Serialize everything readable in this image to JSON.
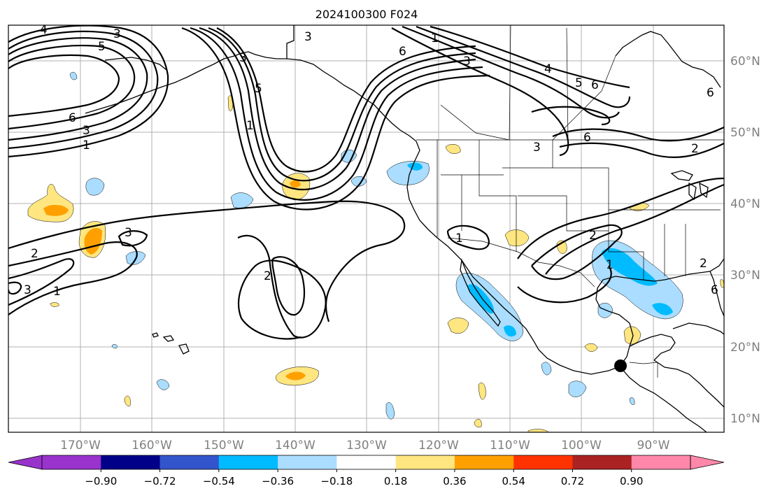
{
  "title": "2024100300 F024",
  "lon_labels": [
    "170°W",
    "160°W",
    "150°W",
    "140°W",
    "130°W",
    "120°W",
    "110°W",
    "100°W",
    "90°W"
  ],
  "lat_labels": [
    "60°N",
    "50°N",
    "40°N",
    "30°N",
    "20°N",
    "10°N"
  ],
  "colorbar": {
    "ticks": [
      "−0.90",
      "−0.72",
      "−0.54",
      "−0.36",
      "−0.18",
      "0.18",
      "0.36",
      "0.54",
      "0.72",
      "0.90"
    ],
    "colors": [
      "#9933cc",
      "#000088",
      "#3355cc",
      "#00bbff",
      "#aaddff",
      "#ffffff",
      "#ffe680",
      "#ffa000",
      "#ff3300",
      "#aa2222",
      "#ff88aa"
    ]
  },
  "contour_labels": [
    "4",
    "3",
    "5",
    "6",
    "3",
    "1",
    "3",
    "5",
    "1",
    "3",
    "6",
    "1",
    "3",
    "4",
    "5",
    "6",
    "6",
    "3",
    "2",
    "6",
    "2",
    "3",
    "3",
    "1",
    "2",
    "1",
    "2",
    "1",
    "2",
    "6"
  ],
  "marker": "station-dot"
}
